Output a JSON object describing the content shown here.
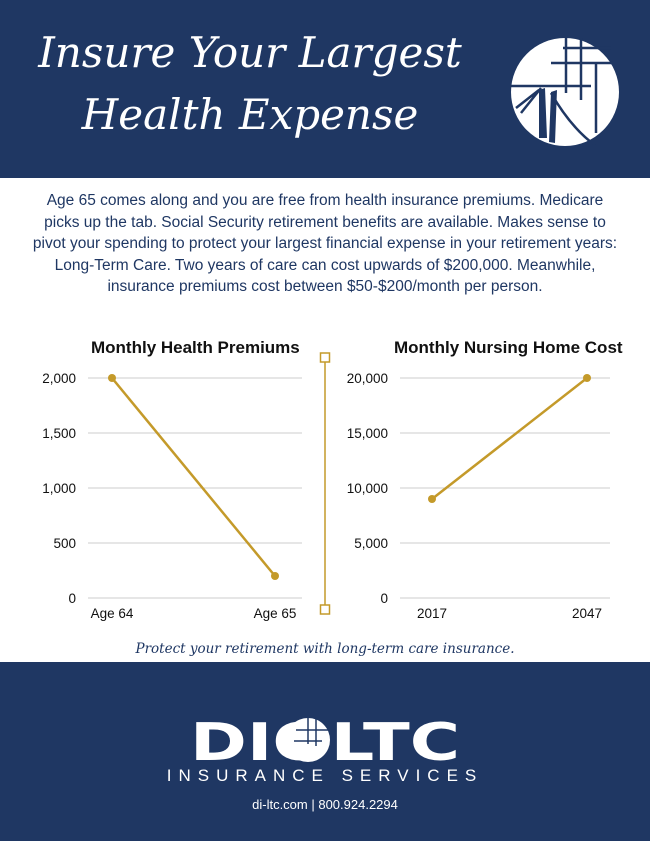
{
  "header": {
    "title_line1": "Insure Your Largest",
    "title_line2": "Health Expense"
  },
  "intro": {
    "text": "Age 65 comes along and you are free from health insurance premiums. Medicare picks up the tab. Social Security retirement benefits are available. Makes sense to pivot your spending to protect your largest financial expense in your retirement years: Long-Term Care. Two years of care can cost upwards of $200,000. Meanwhile, insurance premiums cost between $50-$200/month per person."
  },
  "colors": {
    "navy": "#1f3763",
    "gold": "#c49a2a"
  },
  "chart_data": [
    {
      "type": "line",
      "title": "Monthly Health Premiums",
      "categories": [
        "Age 64",
        "Age 65"
      ],
      "values": [
        2000,
        200
      ],
      "yticks": [
        0,
        500,
        1000,
        1500,
        2000
      ],
      "ytick_labels": [
        "0",
        "500",
        "1,000",
        "1,500",
        "2,000"
      ],
      "ylim": [
        0,
        2000
      ],
      "grid": true
    },
    {
      "type": "line",
      "title": "Monthly Nursing Home Cost",
      "categories": [
        "2017",
        "2047"
      ],
      "values": [
        9000,
        20000
      ],
      "yticks": [
        0,
        5000,
        10000,
        15000,
        20000
      ],
      "ytick_labels": [
        "0",
        "5,000",
        "10,000",
        "15,000",
        "20,000"
      ],
      "ylim": [
        0,
        20000
      ],
      "grid": true
    }
  ],
  "tagline": "Protect your retirement with long-term care insurance.",
  "footer": {
    "brand": "DIOLTC",
    "brand_sub": "INSURANCE SERVICES",
    "contact": "di-ltc.com | 800.924.2294"
  }
}
